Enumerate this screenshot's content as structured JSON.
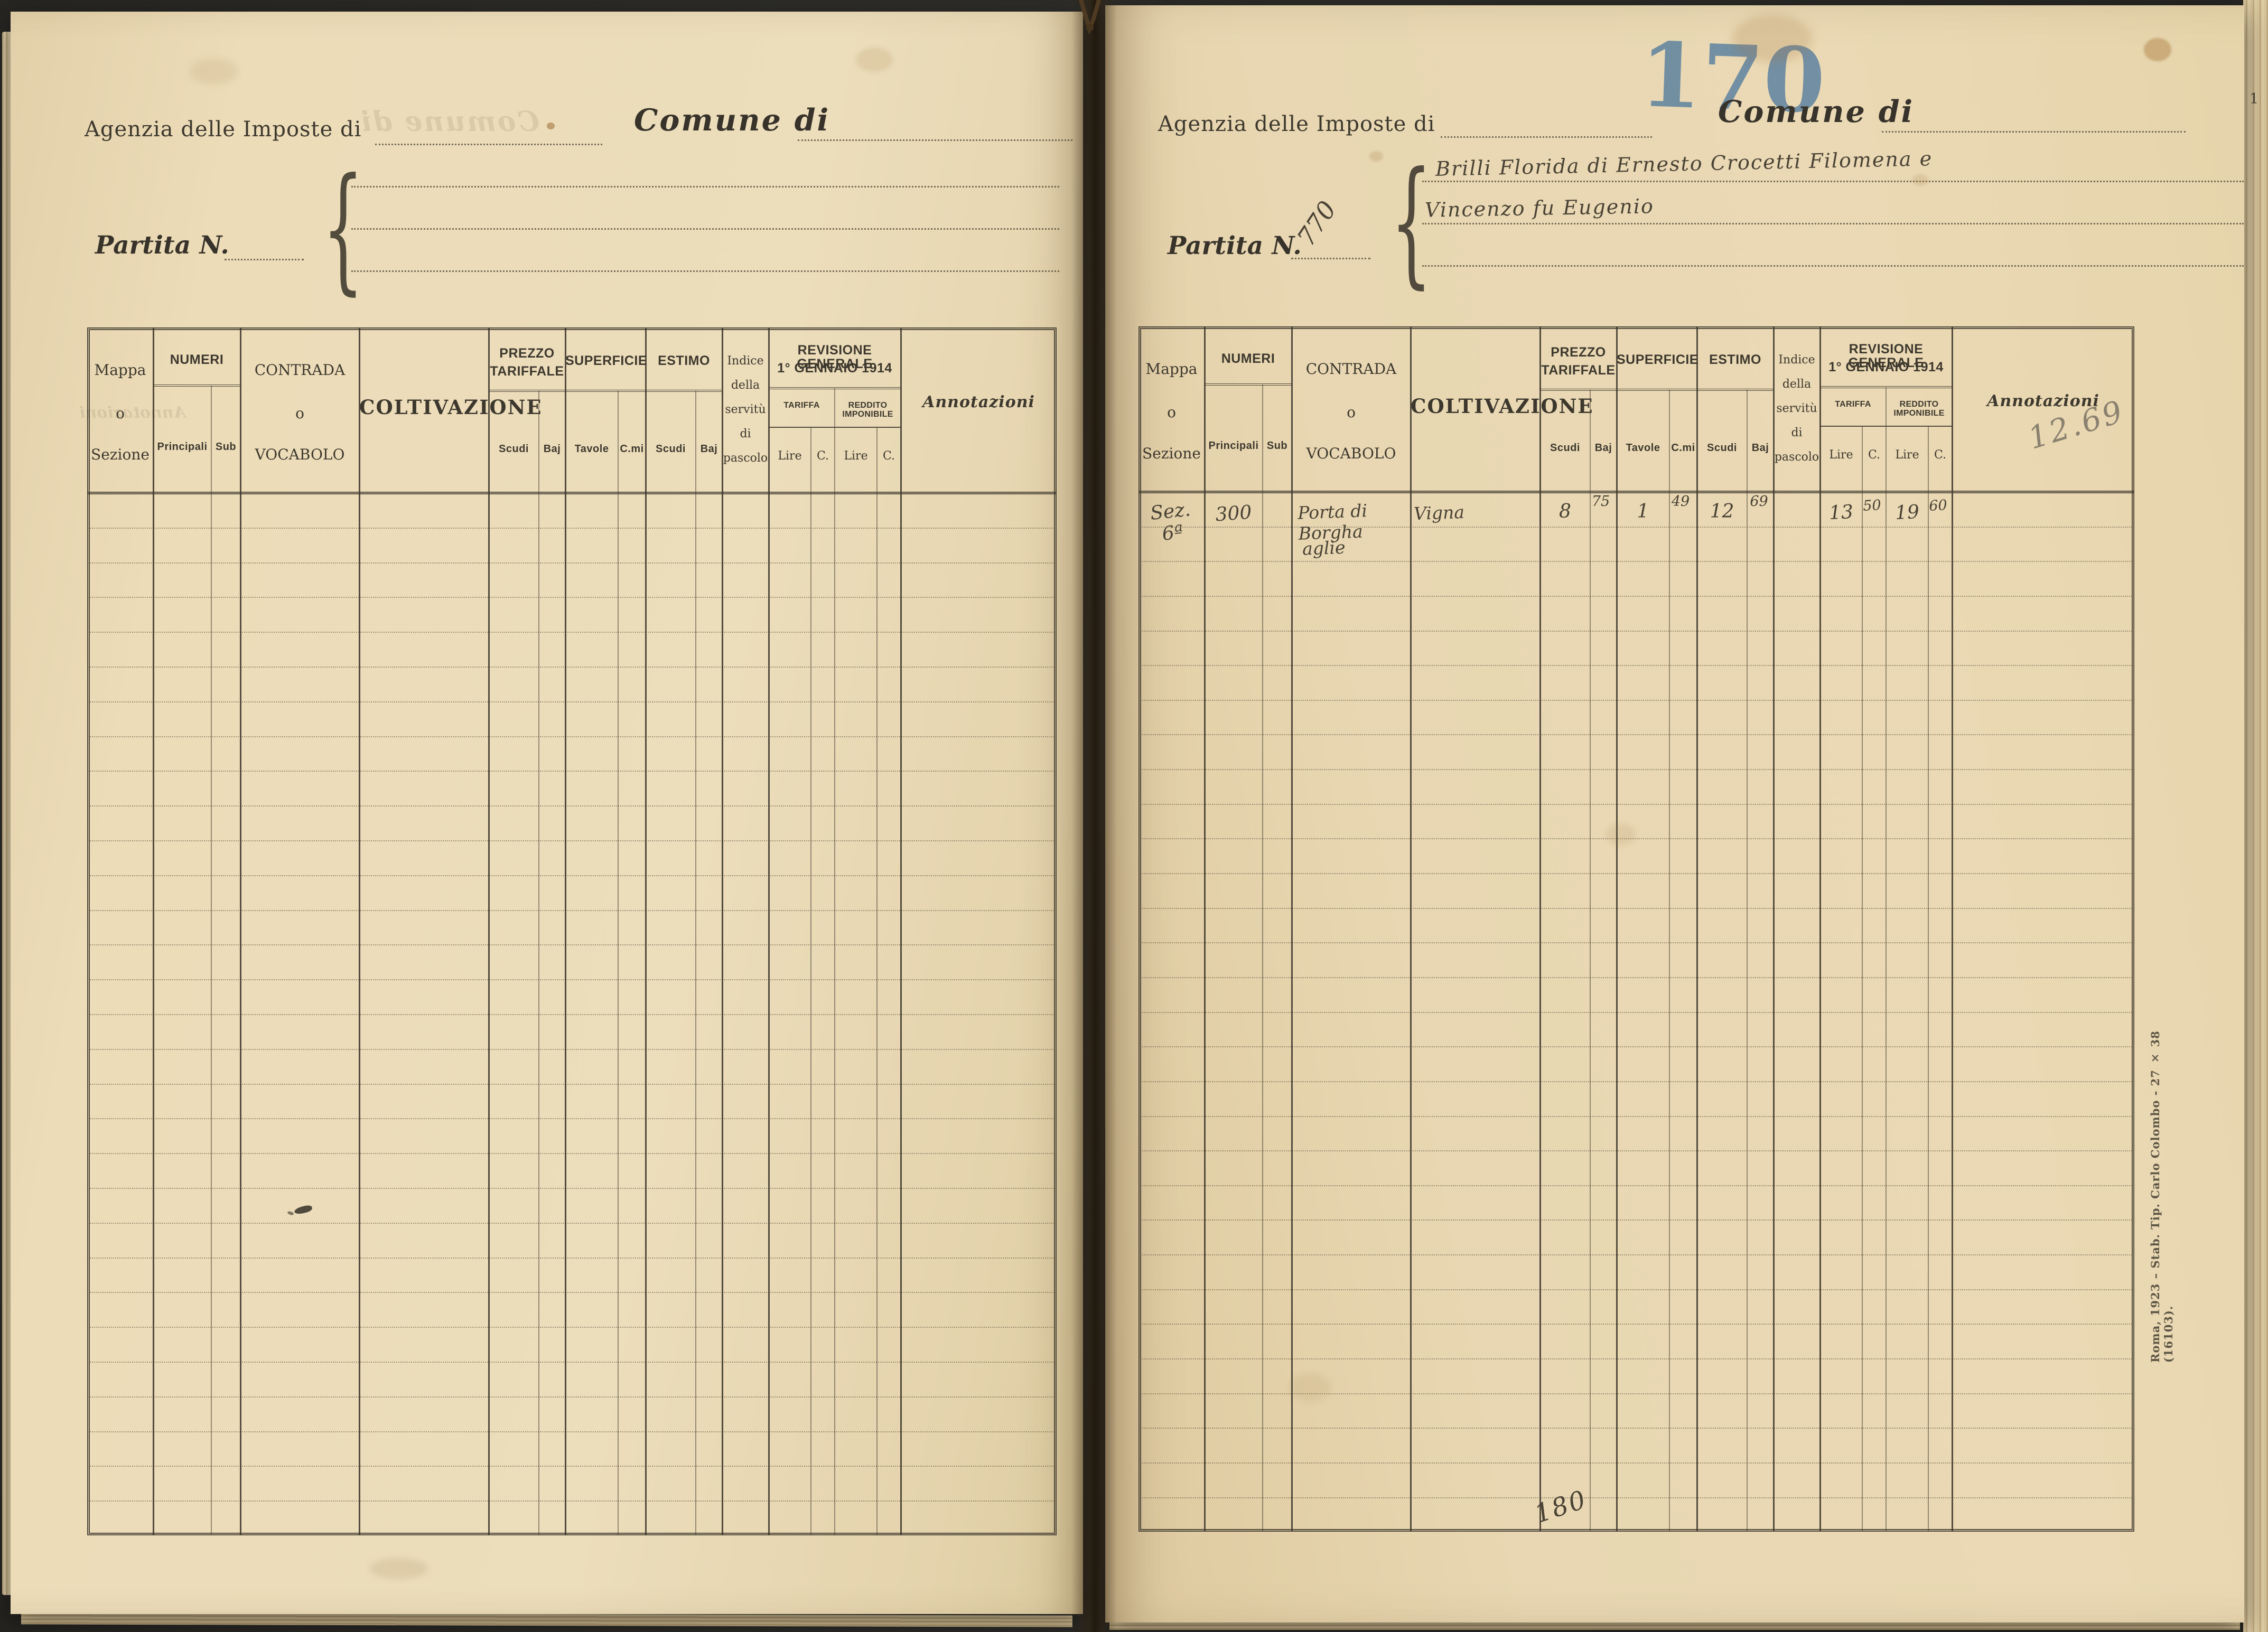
{
  "colors": {
    "background": "#2f2e2b",
    "paper": "#e9d8b2",
    "ink": "#3d382e",
    "handwriting": "#494235",
    "blue_pencil": "#517a9e",
    "pencil_gray": "#8b8170"
  },
  "labels": {
    "agenzia": "Agenzia delle Imposte di",
    "comune": "Comune di",
    "partita": "Partita N.",
    "brace": "{"
  },
  "table": {
    "row_count": 30,
    "mappa": "Mappa",
    "o": "o",
    "sezione": "Sezione",
    "numeri": "NUMERI",
    "principali": "Principali",
    "sub": "Sub",
    "contrada": "CONTRADA",
    "vocabolo": "VOCABOLO",
    "coltivazione": "COLTIVAZIONE",
    "prezzo1": "PREZZO",
    "prezzo2": "TARIFFALE",
    "scudi": "Scudi",
    "baj": "Baj",
    "superficie": "SUPERFICIE",
    "tavole": "Tavole",
    "cmi": "C.mi",
    "estimo": "ESTIMO",
    "indice1": "Indice",
    "indice2": "della",
    "indice3": "servitù",
    "indice4": "di",
    "indice5": "pascolo",
    "revisione1": "REVISIONE GENERALE",
    "revisione2": "1° GENNAIO 1914",
    "tariffa": "TARIFFA",
    "reddito": "REDDITO IMPONIBILE",
    "lire": "Lire",
    "c": "C.",
    "annotazioni": "Annotazioni"
  },
  "left_page": {
    "ghost_comune": "Comune di",
    "ghost_annotazioni": "Annotazioni"
  },
  "right_page": {
    "blue_number": "170",
    "partita_value": "770",
    "owner_line1": "Brilli Florida di Ernesto Crocetti Filomena e",
    "owner_line2": "Vincenzo fu Eugenio",
    "row1": {
      "mappa": "Sez. 6ª",
      "principali": "300",
      "contrada1": "Porta di Borgha",
      "contrada2": "aglie",
      "coltivazione": "Vigna",
      "prezzo_scudi": "8",
      "prezzo_baj": "75",
      "sup_tavole": "1",
      "sup_cmi": "49",
      "estimo_scudi": "12",
      "estimo_baj": "69",
      "tariffa_lire": "13",
      "tariffa_c": "50",
      "reddito_lire": "19",
      "reddito_c": "60"
    },
    "annotazione_matita": "12.69",
    "nota_fondo": "180",
    "stampatore": "Roma, 1923 – Stab. Tip. Carlo Colombo - 27 × 38 (16103).",
    "numero_bordo": "1"
  }
}
